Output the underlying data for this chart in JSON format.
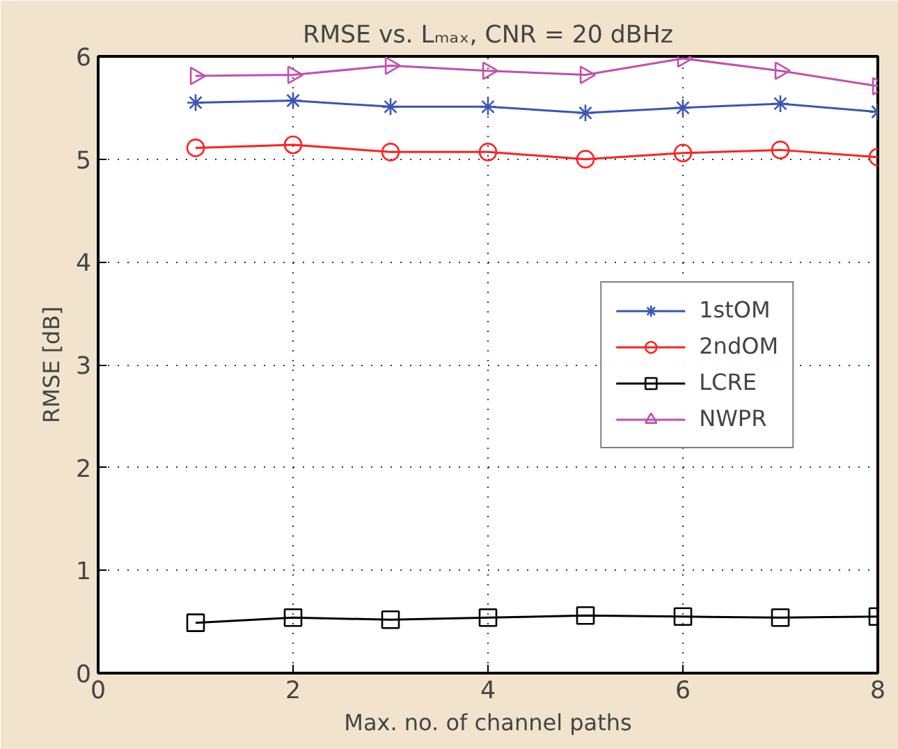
{
  "chart_data": {
    "type": "line",
    "title": "RMSE vs. Lₘₐₓ, CNR = 20 dBHz",
    "xlabel": "Max. no. of channel paths",
    "ylabel": "RMSE [dB]",
    "x": [
      1,
      2,
      3,
      4,
      5,
      6,
      7,
      8
    ],
    "series": [
      {
        "name": "1stOM",
        "color": "#3a55b4",
        "marker": "cross",
        "values": [
          5.55,
          5.57,
          5.51,
          5.51,
          5.45,
          5.5,
          5.54,
          5.46
        ]
      },
      {
        "name": "2ndOM",
        "color": "#ff2020",
        "marker": "circle",
        "values": [
          5.11,
          5.14,
          5.07,
          5.07,
          5.0,
          5.06,
          5.09,
          5.02
        ]
      },
      {
        "name": "LCRE",
        "color": "#000000",
        "marker": "square",
        "values": [
          0.49,
          0.54,
          0.52,
          0.54,
          0.56,
          0.55,
          0.54,
          0.55
        ]
      },
      {
        "name": "NWPR",
        "color": "#c050b0",
        "marker": "triangle",
        "values": [
          5.81,
          5.82,
          5.91,
          5.86,
          5.82,
          5.98,
          5.86,
          5.71
        ]
      }
    ],
    "xlim": [
      0,
      8
    ],
    "ylim": [
      0,
      6
    ],
    "xticks": [
      0,
      2,
      4,
      6,
      8
    ],
    "yticks": [
      0,
      1,
      2,
      3,
      4,
      5,
      6
    ],
    "grid": true,
    "legend": "right",
    "line_style": "solid"
  }
}
